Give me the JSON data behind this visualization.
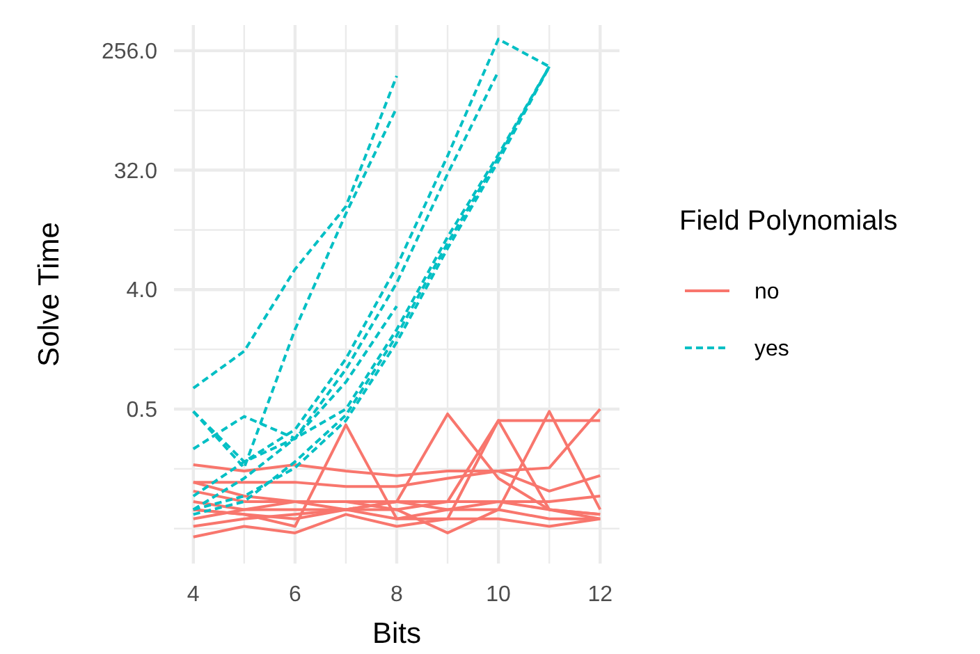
{
  "chart_data": {
    "type": "line",
    "xlabel": "Bits",
    "ylabel": "Solve Time",
    "legend_title": "Field Polynomials",
    "legend": "right",
    "grid": true,
    "log": "y",
    "x": [
      4,
      5,
      6,
      7,
      8,
      9,
      10,
      11,
      12
    ],
    "xlim": [
      3.62,
      12.38
    ],
    "xticks": [
      4,
      {
        "value": 5,
        "label": null
      },
      6,
      {
        "value": 7,
        "label": null
      },
      8,
      {
        "value": 9,
        "label": null
      },
      10,
      {
        "value": 11,
        "label": null
      },
      12
    ],
    "ylim": [
      0.034,
      400
    ],
    "yticks": [
      {
        "value": 0.0625,
        "label": null
      },
      {
        "value": 0.1768,
        "label": null
      },
      {
        "value": 0.5,
        "label": "0.5"
      },
      {
        "value": 1.414,
        "label": null
      },
      {
        "value": 4,
        "label": "4.0"
      },
      {
        "value": 11.31,
        "label": null
      },
      {
        "value": 32,
        "label": "32.0"
      },
      {
        "value": 90.51,
        "label": null
      },
      {
        "value": 256,
        "label": "256.0"
      }
    ],
    "series": [
      {
        "name": "no",
        "color": "#f8766d",
        "line_style": "solid",
        "values": [
          0.19,
          0.17,
          0.19,
          0.17,
          0.157,
          0.17,
          0.17,
          0.12,
          0.157
        ]
      },
      {
        "color": "#f8766d",
        "line_style": "solid",
        "values": [
          0.14,
          0.14,
          0.14,
          0.13,
          0.13,
          0.15,
          0.17,
          0.18,
          0.5
        ]
      },
      {
        "color": "#f8766d",
        "line_style": "solid",
        "values": [
          0.087,
          0.08,
          0.065,
          0.38,
          0.074,
          0.087,
          0.1,
          0.087,
          0.08
        ]
      },
      {
        "color": "#f8766d",
        "line_style": "solid",
        "values": [
          0.074,
          0.087,
          0.087,
          0.087,
          0.1,
          0.46,
          0.15,
          0.087,
          0.074
        ]
      },
      {
        "color": "#f8766d",
        "line_style": "solid",
        "values": [
          0.065,
          0.074,
          0.08,
          0.087,
          0.087,
          0.1,
          0.41,
          0.41,
          0.41
        ]
      },
      {
        "color": "#f8766d",
        "line_style": "solid",
        "values": [
          0.1,
          0.087,
          0.1,
          0.1,
          0.1,
          0.087,
          0.087,
          0.48,
          0.087
        ]
      },
      {
        "color": "#f8766d",
        "line_style": "solid",
        "values": [
          0.087,
          0.08,
          0.074,
          0.087,
          0.074,
          0.074,
          0.41,
          0.087,
          0.08
        ]
      },
      {
        "color": "#f8766d",
        "line_style": "solid",
        "values": [
          0.054,
          0.065,
          0.058,
          0.08,
          0.065,
          0.074,
          0.074,
          0.065,
          0.074
        ]
      },
      {
        "color": "#f8766d",
        "line_style": "solid",
        "values": [
          0.14,
          0.11,
          0.1,
          0.087,
          0.1,
          0.1,
          0.1,
          0.1,
          0.11
        ]
      },
      {
        "color": "#f8766d",
        "line_style": "solid",
        "values": [
          0.12,
          0.1,
          0.1,
          0.1,
          0.087,
          0.058,
          0.087,
          0.074,
          0.074
        ]
      },
      {
        "name": "yes",
        "color": "#00bfc4",
        "line_style": "dashed",
        "values": [
          0.72,
          1.37,
          5.7,
          17,
          165,
          null,
          null,
          null,
          null
        ]
      },
      {
        "color": "#00bfc4",
        "line_style": "dashed",
        "values": [
          0.48,
          0.18,
          2,
          15,
          95,
          null,
          null,
          null,
          null
        ]
      },
      {
        "color": "#00bfc4",
        "line_style": "dashed",
        "values": [
          0.11,
          0.2,
          0.35,
          1.2,
          6,
          41,
          313,
          194,
          null
        ]
      },
      {
        "color": "#00bfc4",
        "line_style": "dashed",
        "values": [
          0.087,
          0.15,
          0.3,
          1,
          4.5,
          30,
          179,
          null,
          null
        ]
      },
      {
        "color": "#00bfc4",
        "line_style": "dashed",
        "values": [
          0.087,
          0.11,
          0.18,
          0.41,
          1.6,
          8.2,
          37.5,
          194,
          null
        ]
      },
      {
        "color": "#00bfc4",
        "line_style": "dashed",
        "values": [
          0.08,
          0.1,
          0.2,
          0.45,
          1.8,
          9,
          40,
          194,
          null
        ]
      },
      {
        "color": "#00bfc4",
        "line_style": "dashed",
        "values": [
          0.48,
          0.2,
          0.3,
          0.5,
          2,
          10,
          42,
          194,
          null
        ]
      },
      {
        "color": "#00bfc4",
        "line_style": "dashed",
        "values": [
          0.25,
          0.44,
          0.3,
          0.8,
          3,
          null,
          null,
          null,
          null
        ]
      }
    ]
  }
}
